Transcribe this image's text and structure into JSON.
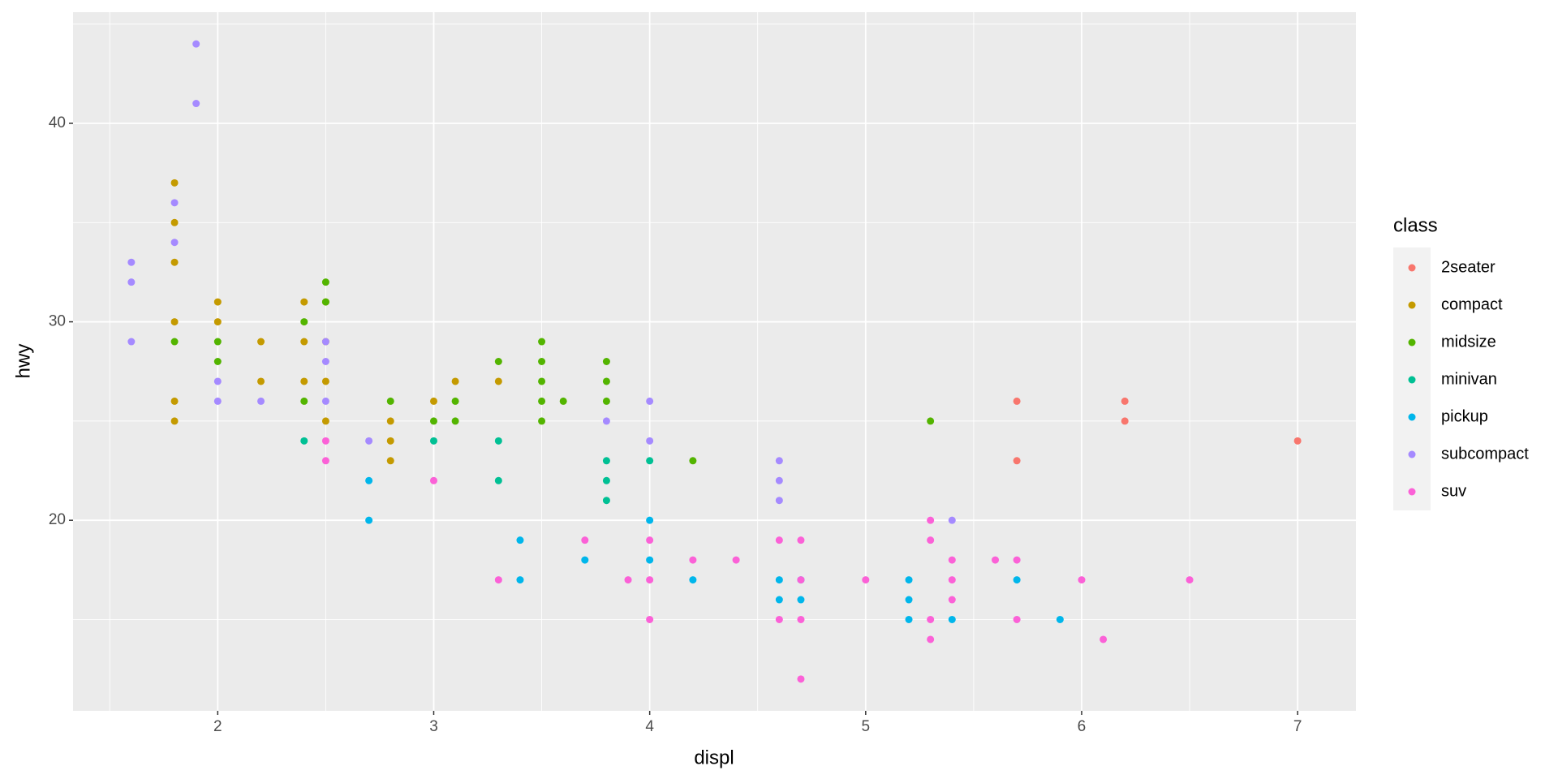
{
  "chart_data": {
    "type": "scatter",
    "x_label": "displ",
    "y_label": "hwy",
    "legend_title": "class",
    "legend_position": "right",
    "grid": true,
    "xlim": [
      1.33,
      7.27
    ],
    "ylim": [
      10.4,
      45.6
    ],
    "xticks": [
      2,
      3,
      4,
      5,
      6,
      7
    ],
    "yticks": [
      20,
      30,
      40
    ],
    "series": [
      {
        "name": "2seater",
        "color": "#F8766D",
        "x": [
          5.7,
          5.7,
          6.2,
          6.2,
          7
        ],
        "values": [
          26,
          23,
          26,
          25,
          24
        ]
      },
      {
        "name": "compact",
        "color": "#C49A00",
        "x": [
          1.8,
          1.8,
          1.8,
          1.8,
          1.8,
          1.8,
          2,
          2,
          2.2,
          2.2,
          2.4,
          2.4,
          2.4,
          2.5,
          2.5,
          2.5,
          2.5,
          2.8,
          2.8,
          2.8,
          3,
          3.1,
          3.3
        ],
        "values": [
          37,
          35,
          33,
          30,
          26,
          25,
          31,
          30,
          29,
          27,
          31,
          29,
          27,
          31,
          29,
          27,
          25,
          25,
          24,
          23,
          26,
          27,
          27
        ]
      },
      {
        "name": "midsize",
        "color": "#53B400",
        "x": [
          1.8,
          2,
          2,
          2.4,
          2.4,
          2.5,
          2.5,
          2.8,
          3,
          3.1,
          3.1,
          3.3,
          3.5,
          3.5,
          3.5,
          3.5,
          3.5,
          3.6,
          3.8,
          3.8,
          3.8,
          4.2,
          5.3
        ],
        "values": [
          29,
          29,
          28,
          30,
          26,
          32,
          31,
          26,
          25,
          26,
          25,
          28,
          29,
          28,
          27,
          26,
          25,
          26,
          28,
          27,
          26,
          23,
          25
        ]
      },
      {
        "name": "minivan",
        "color": "#00C094",
        "x": [
          2.4,
          3,
          3.3,
          3.3,
          3.8,
          3.8,
          3.8,
          4
        ],
        "values": [
          24,
          24,
          24,
          22,
          23,
          22,
          21,
          23
        ]
      },
      {
        "name": "pickup",
        "color": "#00B6EB",
        "x": [
          2.7,
          2.7,
          3.4,
          3.4,
          3.7,
          4,
          4,
          4.2,
          4.6,
          4.6,
          4.7,
          4.7,
          5.2,
          5.2,
          5.2,
          5.4,
          5.7,
          5.9
        ],
        "values": [
          22,
          20,
          19,
          17,
          18,
          20,
          18,
          17,
          17,
          16,
          17,
          16,
          17,
          16,
          15,
          15,
          17,
          15
        ]
      },
      {
        "name": "subcompact",
        "color": "#A58AFF",
        "x": [
          1.6,
          1.6,
          1.6,
          1.8,
          1.8,
          1.9,
          1.9,
          2,
          2,
          2.2,
          2.5,
          2.5,
          2.5,
          2.7,
          3.8,
          4,
          4,
          4.6,
          4.6,
          4.6,
          5.4
        ],
        "values": [
          33,
          32,
          29,
          36,
          34,
          44,
          41,
          27,
          26,
          26,
          29,
          28,
          26,
          24,
          25,
          26,
          24,
          23,
          22,
          21,
          20
        ]
      },
      {
        "name": "suv",
        "color": "#FB61D7",
        "x": [
          2.5,
          2.5,
          3,
          3.3,
          3.7,
          3.9,
          4,
          4,
          4,
          4.2,
          4.4,
          4.6,
          4.6,
          4.7,
          4.7,
          4.7,
          4.7,
          5,
          5.3,
          5.3,
          5.3,
          5.3,
          5.4,
          5.4,
          5.4,
          5.6,
          5.7,
          5.7,
          6,
          6.1,
          6.5
        ],
        "values": [
          24,
          23,
          22,
          17,
          19,
          17,
          19,
          17,
          15,
          18,
          18,
          19,
          15,
          19,
          17,
          15,
          12,
          17,
          20,
          19,
          15,
          14,
          18,
          17,
          16,
          18,
          18,
          15,
          17,
          14,
          17
        ]
      }
    ]
  }
}
